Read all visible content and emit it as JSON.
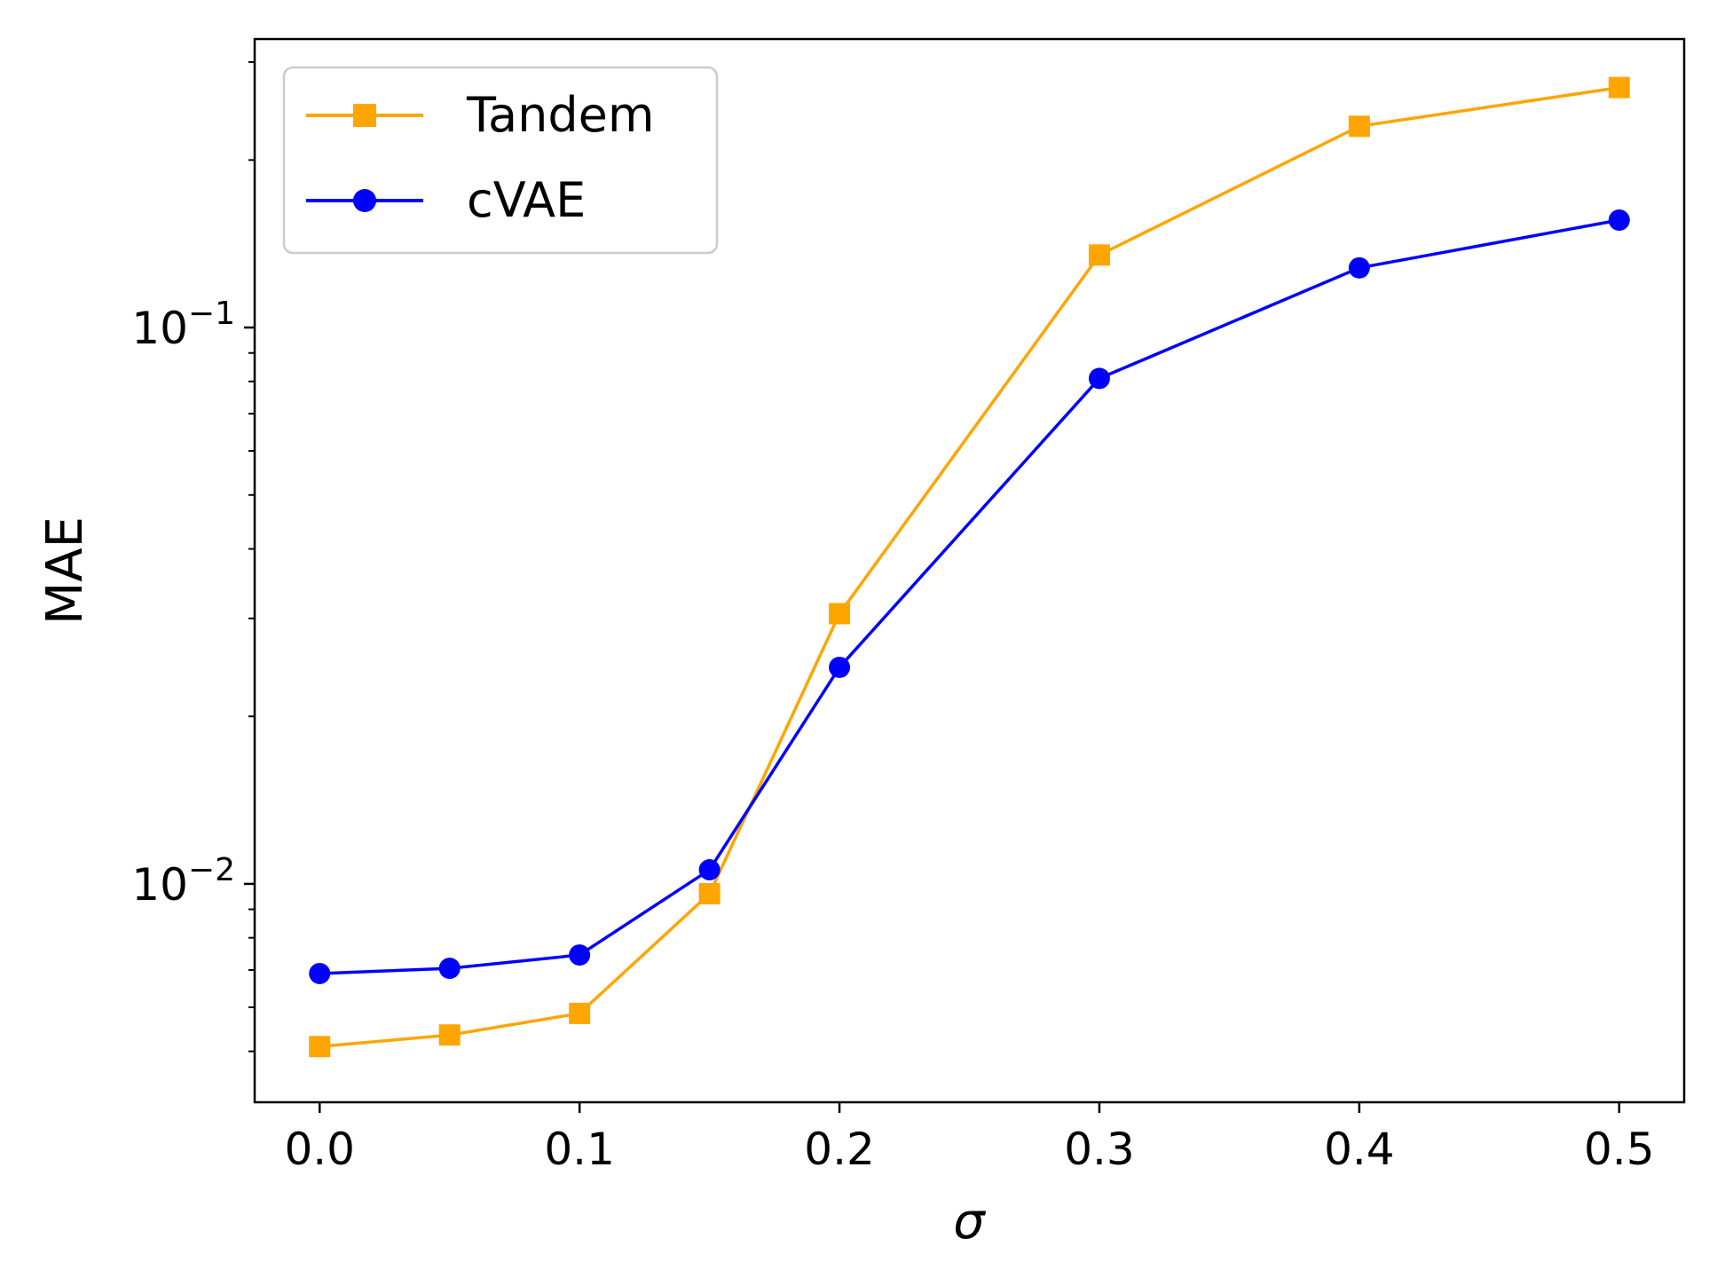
{
  "chart_data": {
    "type": "line",
    "title": "",
    "xlabel": "σ",
    "ylabel": "MAE",
    "yscale": "log",
    "xlim": [
      -0.025,
      0.525
    ],
    "ylim": [
      0.00405,
      0.33
    ],
    "x": [
      0.0,
      0.05,
      0.1,
      0.15,
      0.2,
      0.3,
      0.4,
      0.5
    ],
    "x_ticks": [
      0.0,
      0.1,
      0.2,
      0.3,
      0.4,
      0.5
    ],
    "x_tick_labels": [
      "0.0",
      "0.1",
      "0.2",
      "0.3",
      "0.4",
      "0.5"
    ],
    "y_major_ticks": [
      {
        "value": 0.1,
        "base": "10",
        "exp": "−1"
      },
      {
        "value": 0.01,
        "base": "10",
        "exp": "−2"
      }
    ],
    "legend_position": "top-left",
    "grid": false,
    "series": [
      {
        "name": "Tandem",
        "color": "#FFA500",
        "marker": "square",
        "values": [
          0.0051,
          0.00535,
          0.00585,
          0.0096,
          0.0306,
          0.135,
          0.23,
          0.27
        ]
      },
      {
        "name": "cVAE",
        "color": "#0000FF",
        "marker": "circle",
        "values": [
          0.0069,
          0.00705,
          0.00745,
          0.0106,
          0.0245,
          0.081,
          0.128,
          0.156
        ]
      }
    ]
  }
}
